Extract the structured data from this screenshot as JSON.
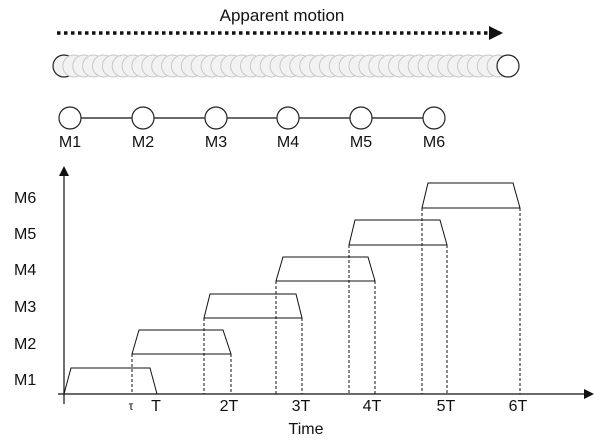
{
  "title": "Apparent motion",
  "motor_labels": [
    "M1",
    "M2",
    "M3",
    "M4",
    "M5",
    "M6"
  ],
  "y_axis_labels": [
    "M1",
    "M2",
    "M3",
    "M4",
    "M5",
    "M6"
  ],
  "x_tick_labels": [
    "τ",
    "T",
    "2T",
    "3T",
    "4T",
    "5T",
    "6T"
  ],
  "x_axis_label": "Time",
  "colors": {
    "stroke": "#111111",
    "circle_fill": "#f2f2f2",
    "background": "#ffffff"
  }
}
